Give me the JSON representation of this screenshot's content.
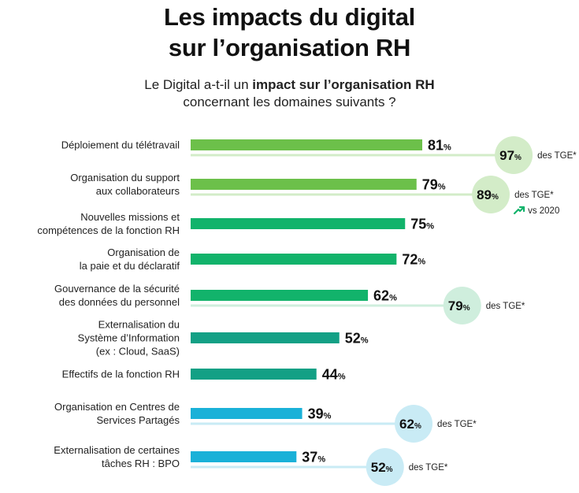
{
  "title_line1": "Les impacts du digital",
  "title_line2": "sur l’organisation RH",
  "subtitle": {
    "part1": "Le Digital a-t-il un ",
    "bold": "impact sur l’organisation RH",
    "line2": "concernant les domaines suivants ?"
  },
  "colors": {
    "light_green": "#6cc04a",
    "green": "#12b36b",
    "teal": "#13a085",
    "blue": "#1ab1d8",
    "light_green_tint": "#d3ecc8",
    "green_tint": "#cfeedd",
    "blue_tint": "#c9ebf5"
  },
  "chart_data": {
    "type": "bar",
    "orientation": "horizontal",
    "unit": "%",
    "xlim": [
      0,
      100
    ],
    "categories": [
      [
        "Déploiement du télétravail"
      ],
      [
        "Organisation du support",
        "aux collaborateurs"
      ],
      [
        "Nouvelles missions et",
        "compétences de la fonction RH"
      ],
      [
        "Organisation de",
        "la paie et du déclaratif"
      ],
      [
        "Gouvernance de la sécurité",
        "des données du personnel"
      ],
      [
        "Externalisation du",
        "Système d’Information",
        "(ex : Cloud, SaaS)"
      ],
      [
        "Effectifs de la fonction RH"
      ],
      [
        "Organisation en Centres de",
        "Services Partagés"
      ],
      [
        "Externalisation de certaines",
        "tâches RH : BPO"
      ]
    ],
    "values": [
      81,
      79,
      75,
      72,
      62,
      52,
      44,
      39,
      37
    ],
    "bar_colors": [
      "light_green",
      "light_green",
      "green",
      "green",
      "green",
      "teal",
      "teal",
      "blue",
      "blue"
    ],
    "comparison": {
      "label": "des TGE*",
      "items": [
        {
          "index": 0,
          "value": 97
        },
        {
          "index": 1,
          "value": 89,
          "trend_label": "vs 2020"
        },
        {
          "index": 4,
          "value": 79
        },
        {
          "index": 7,
          "value": 62
        },
        {
          "index": 8,
          "value": 52
        }
      ]
    }
  }
}
